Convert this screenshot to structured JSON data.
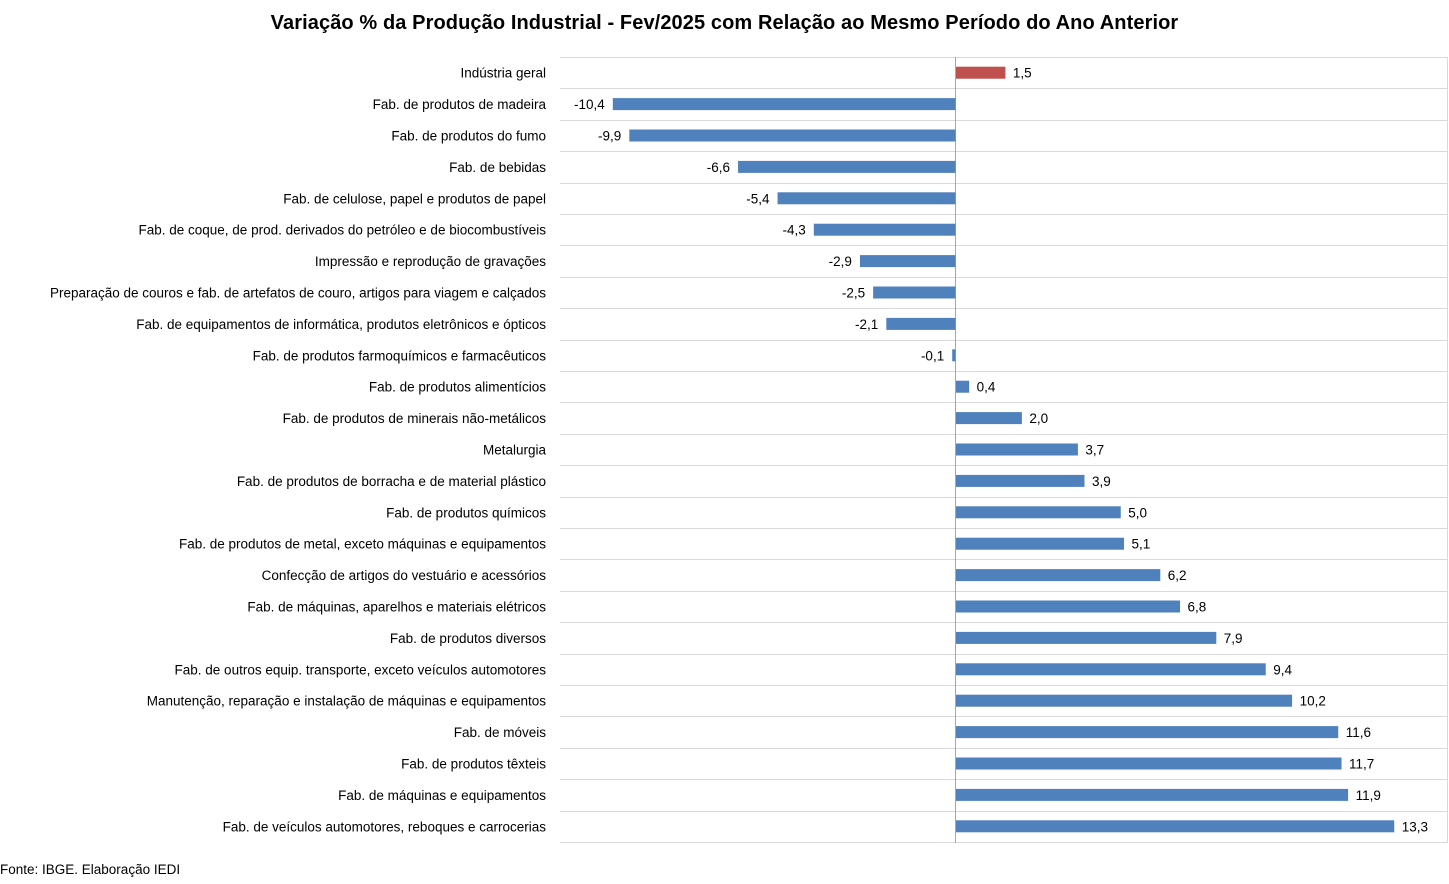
{
  "chart_data": {
    "type": "bar",
    "orientation": "horizontal",
    "title": "Variação % da Produção Industrial - Fev/2025 com Relação ao Mesmo Período do Ano Anterior",
    "xlabel": "",
    "ylabel": "",
    "xlim": [
      -12,
      14
    ],
    "grid": true,
    "legend": "none",
    "colors": {
      "highlight": "#c0504d",
      "default": "#4f81bd",
      "gridline": "#d9d9d9",
      "axis": "#a6a6a6"
    },
    "categories": [
      "Indústria geral",
      "Fab. de produtos de madeira",
      "Fab. de produtos do fumo",
      "Fab. de bebidas",
      "Fab. de celulose, papel e produtos de papel",
      "Fab. de coque, de prod. derivados do petróleo e de biocombustíveis",
      "Impressão e reprodução de gravações",
      "Preparação de couros e fab. de artefatos de couro, artigos para viagem e calçados",
      "Fab. de equipamentos de informática, produtos eletrônicos e ópticos",
      "Fab. de produtos farmoquímicos e farmacêuticos",
      "Fab. de produtos alimentícios",
      "Fab. de produtos de minerais não-metálicos",
      "Metalurgia",
      "Fab. de produtos de borracha e de material plástico",
      "Fab. de produtos químicos",
      "Fab. de produtos de metal, exceto máquinas e equipamentos",
      "Confecção de artigos do vestuário e acessórios",
      "Fab. de máquinas, aparelhos e materiais elétricos",
      "Fab. de produtos diversos",
      "Fab. de outros equip. transporte, exceto veículos automotores",
      "Manutenção, reparação e instalação de máquinas e equipamentos",
      "Fab. de móveis",
      "Fab. de produtos têxteis",
      "Fab. de máquinas e equipamentos",
      "Fab. de veículos automotores, reboques e carrocerias"
    ],
    "values": [
      1.5,
      -10.4,
      -9.9,
      -6.6,
      -5.4,
      -4.3,
      -2.9,
      -2.5,
      -2.1,
      -0.1,
      0.4,
      2.0,
      3.7,
      3.9,
      5.0,
      5.1,
      6.2,
      6.8,
      7.9,
      9.4,
      10.2,
      11.6,
      11.7,
      11.9,
      13.3
    ],
    "value_labels": [
      "1,5",
      "-10,4",
      "-9,9",
      "-6,6",
      "-5,4",
      "-4,3",
      "-2,9",
      "-2,5",
      "-2,1",
      "-0,1",
      "0,4",
      "2,0",
      "3,7",
      "3,9",
      "5,0",
      "5,1",
      "6,2",
      "6,8",
      "7,9",
      "9,4",
      "10,2",
      "11,6",
      "11,7",
      "11,9",
      "13,3"
    ],
    "highlight_index": 0
  },
  "footer": {
    "source": "Fonte: IBGE. Elaboração IEDI"
  }
}
